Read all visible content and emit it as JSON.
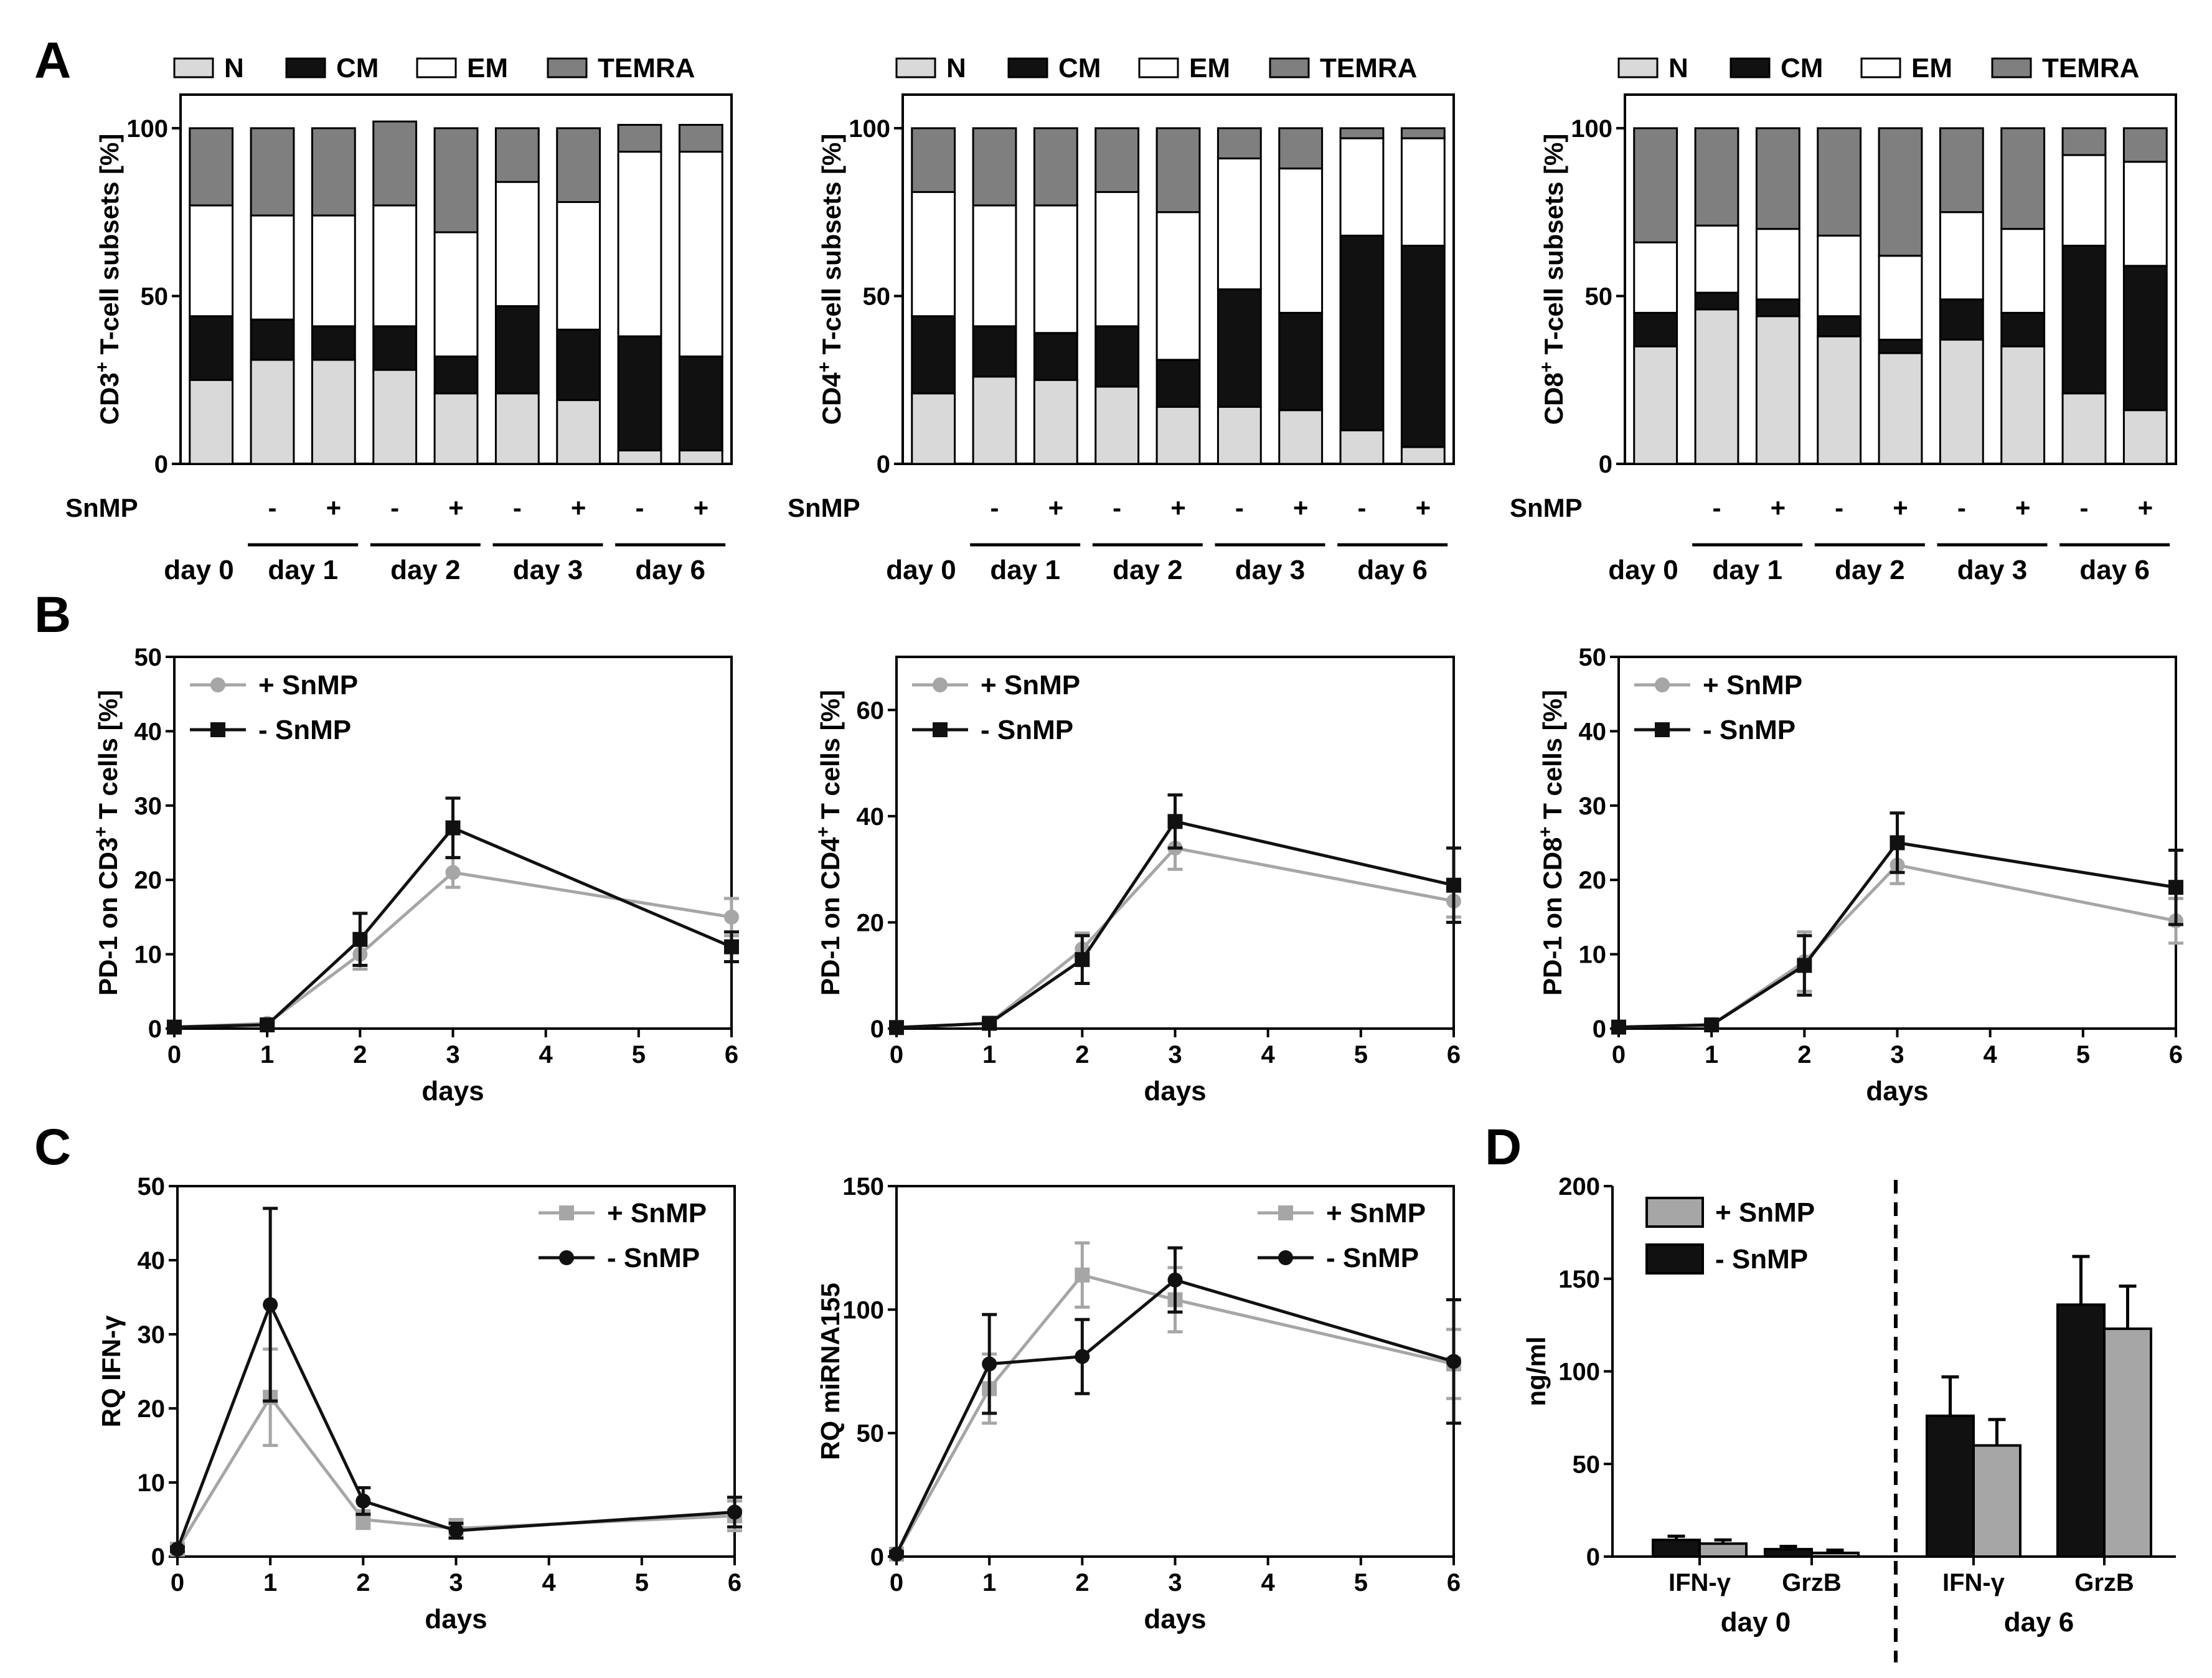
{
  "colors": {
    "N": "#d9d9d9",
    "CM": "#111111",
    "EM": "#ffffff",
    "TEMRA": "#7f7f7f",
    "plus": "#a6a6a6",
    "minus": "#111111",
    "d_plus": "#a6a6a6",
    "d_minus": "#111111"
  },
  "panel_labels": {
    "A": "A",
    "B": "B",
    "C": "C",
    "D": "D"
  },
  "chart_data": [
    {
      "id": "A1",
      "type": "bar",
      "stacked": true,
      "ylabel": "CD3",
      "ylabel_sup": "+",
      "ylabel_rest": " T-cell subsets [%]",
      "ylim": [
        0,
        110
      ],
      "yticks": [
        0,
        50,
        100
      ],
      "legend": [
        "N",
        "CM",
        "EM",
        "TEMRA"
      ],
      "snmp_label": "SnMP",
      "snmp": [
        "",
        "-",
        "+",
        "-",
        "+",
        "-",
        "+",
        "-",
        "+"
      ],
      "day_groups": [
        "day 0",
        "day 1",
        "day 2",
        "day 3",
        "day 6"
      ],
      "categories": [
        "day 0",
        "day 1 -",
        "day 1 +",
        "day 2 -",
        "day 2 +",
        "day 3 -",
        "day 3 +",
        "day 6 -",
        "day 6 +"
      ],
      "series": [
        {
          "name": "N",
          "values": [
            25,
            31,
            31,
            28,
            21,
            21,
            19,
            4,
            4
          ]
        },
        {
          "name": "CM",
          "values": [
            19,
            12,
            10,
            13,
            11,
            26,
            21,
            34,
            28
          ]
        },
        {
          "name": "EM",
          "values": [
            33,
            31,
            33,
            36,
            37,
            37,
            38,
            55,
            61
          ]
        },
        {
          "name": "TEMRA",
          "values": [
            23,
            26,
            26,
            25,
            31,
            16,
            22,
            8,
            8
          ]
        }
      ]
    },
    {
      "id": "A2",
      "type": "bar",
      "stacked": true,
      "ylabel": "CD4",
      "ylabel_sup": "+",
      "ylabel_rest": " T-cell subsets [%]",
      "ylim": [
        0,
        110
      ],
      "yticks": [
        0,
        50,
        100
      ],
      "legend": [
        "N",
        "CM",
        "EM",
        "TEMRA"
      ],
      "snmp_label": "SnMP",
      "snmp": [
        "",
        "-",
        "+",
        "-",
        "+",
        "-",
        "+",
        "-",
        "+"
      ],
      "day_groups": [
        "day 0",
        "day 1",
        "day 2",
        "day 3",
        "day 6"
      ],
      "categories": [
        "day 0",
        "day 1 -",
        "day 1 +",
        "day 2 -",
        "day 2 +",
        "day 3 -",
        "day 3 +",
        "day 6 -",
        "day 6 +"
      ],
      "series": [
        {
          "name": "N",
          "values": [
            21,
            26,
            25,
            23,
            17,
            17,
            16,
            10,
            5
          ]
        },
        {
          "name": "CM",
          "values": [
            23,
            15,
            14,
            18,
            14,
            35,
            29,
            58,
            60
          ]
        },
        {
          "name": "EM",
          "values": [
            37,
            36,
            38,
            40,
            44,
            39,
            43,
            29,
            32
          ]
        },
        {
          "name": "TEMRA",
          "values": [
            19,
            23,
            23,
            19,
            25,
            9,
            12,
            3,
            3
          ]
        }
      ]
    },
    {
      "id": "A3",
      "type": "bar",
      "stacked": true,
      "ylabel": "CD8",
      "ylabel_sup": "+",
      "ylabel_rest": " T-cell subsets [%]",
      "ylim": [
        0,
        110
      ],
      "yticks": [
        0,
        50,
        100
      ],
      "legend": [
        "N",
        "CM",
        "EM",
        "TEMRA"
      ],
      "snmp_label": "SnMP",
      "snmp": [
        "",
        "-",
        "+",
        "-",
        "+",
        "-",
        "+",
        "-",
        "+"
      ],
      "day_groups": [
        "day 0",
        "day 1",
        "day 2",
        "day 3",
        "day 6"
      ],
      "categories": [
        "day 0",
        "day 1 -",
        "day 1 +",
        "day 2 -",
        "day 2 +",
        "day 3 -",
        "day 3 +",
        "day 6 -",
        "day 6 +"
      ],
      "series": [
        {
          "name": "N",
          "values": [
            35,
            46,
            44,
            38,
            33,
            37,
            35,
            21,
            16
          ]
        },
        {
          "name": "CM",
          "values": [
            10,
            5,
            5,
            6,
            4,
            12,
            10,
            44,
            43
          ]
        },
        {
          "name": "EM",
          "values": [
            21,
            20,
            21,
            24,
            25,
            26,
            25,
            27,
            31
          ]
        },
        {
          "name": "TEMRA",
          "values": [
            34,
            29,
            30,
            32,
            38,
            25,
            30,
            8,
            10
          ]
        }
      ]
    },
    {
      "id": "B1",
      "type": "line",
      "ylabel": "PD-1 on CD3",
      "ylabel_sup": "+",
      "ylabel_rest": " T cells [%]",
      "xlabel": "days",
      "ylim": [
        0,
        50
      ],
      "yticks": [
        0,
        10,
        20,
        30,
        40,
        50
      ],
      "xlim": [
        0,
        6
      ],
      "xticks": [
        0,
        1,
        2,
        3,
        4,
        5,
        6
      ],
      "x": [
        0,
        1,
        2,
        3,
        6
      ],
      "series": [
        {
          "name": "+ SnMP",
          "marker": "circle",
          "values": [
            0.2,
            0.7,
            10,
            21,
            15
          ],
          "err": [
            0.3,
            0.3,
            2,
            2,
            2.5
          ]
        },
        {
          "name": "- SnMP",
          "marker": "square",
          "values": [
            0.2,
            0.5,
            12,
            27,
            11
          ],
          "err": [
            0.3,
            0.3,
            3.5,
            4,
            2
          ]
        }
      ]
    },
    {
      "id": "B2",
      "type": "line",
      "ylabel": "PD-1 on CD4",
      "ylabel_sup": "+",
      "ylabel_rest": " T cells [%]",
      "xlabel": "days",
      "ylim": [
        0,
        70
      ],
      "yticks": [
        0,
        20,
        40,
        60
      ],
      "xlim": [
        0,
        6
      ],
      "xticks": [
        0,
        1,
        2,
        3,
        4,
        5,
        6
      ],
      "x": [
        0,
        1,
        2,
        3,
        6
      ],
      "series": [
        {
          "name": "+ SnMP",
          "marker": "circle",
          "values": [
            0.2,
            1,
            15,
            34,
            24
          ],
          "err": [
            0.3,
            0.5,
            3,
            4,
            3
          ]
        },
        {
          "name": "- SnMP",
          "marker": "square",
          "values": [
            0.2,
            1,
            13,
            39,
            27
          ],
          "err": [
            0.3,
            0.5,
            4.5,
            5,
            7
          ]
        }
      ]
    },
    {
      "id": "B3",
      "type": "line",
      "ylabel": "PD-1 on CD8",
      "ylabel_sup": "+",
      "ylabel_rest": " T cells [%]",
      "xlabel": "days",
      "ylim": [
        0,
        50
      ],
      "yticks": [
        0,
        10,
        20,
        30,
        40,
        50
      ],
      "xlim": [
        0,
        6
      ],
      "xticks": [
        0,
        1,
        2,
        3,
        4,
        5,
        6
      ],
      "x": [
        0,
        1,
        2,
        3,
        6
      ],
      "series": [
        {
          "name": "+ SnMP",
          "marker": "circle",
          "values": [
            0.2,
            0.5,
            9,
            22,
            14.5
          ],
          "err": [
            0.3,
            0.3,
            4,
            2.5,
            3
          ]
        },
        {
          "name": "- SnMP",
          "marker": "square",
          "values": [
            0.2,
            0.5,
            8.5,
            25,
            19
          ],
          "err": [
            0.3,
            0.3,
            4,
            4,
            5
          ]
        }
      ]
    },
    {
      "id": "C1",
      "type": "line",
      "ylabel": "RQ IFN-γ",
      "xlabel": "days",
      "ylim": [
        0,
        50
      ],
      "yticks": [
        0,
        10,
        20,
        30,
        40,
        50
      ],
      "xlim": [
        0,
        6
      ],
      "xticks": [
        0,
        1,
        2,
        3,
        4,
        5,
        6
      ],
      "x": [
        0,
        1,
        2,
        3,
        6
      ],
      "series": [
        {
          "name": "+ SnMP",
          "marker": "square",
          "values": [
            1,
            21.5,
            5,
            3.8,
            5.5
          ],
          "err": [
            0.3,
            6.5,
            1.2,
            1.2,
            2
          ]
        },
        {
          "name": "- SnMP",
          "marker": "circle",
          "values": [
            1,
            34,
            7.5,
            3.5,
            6
          ],
          "err": [
            0.3,
            13,
            1.8,
            1,
            2
          ]
        }
      ]
    },
    {
      "id": "C2",
      "type": "line",
      "ylabel": "RQ miRNA155",
      "xlabel": "days",
      "ylim": [
        0,
        150
      ],
      "yticks": [
        0,
        50,
        100,
        150
      ],
      "xlim": [
        0,
        6
      ],
      "xticks": [
        0,
        1,
        2,
        3,
        4,
        5,
        6
      ],
      "x": [
        0,
        1,
        2,
        3,
        6
      ],
      "series": [
        {
          "name": "+ SnMP",
          "marker": "square",
          "values": [
            1,
            68,
            114,
            104,
            78
          ],
          "err": [
            1,
            14,
            13,
            13,
            14
          ]
        },
        {
          "name": "- SnMP",
          "marker": "circle",
          "values": [
            1,
            78,
            81,
            112,
            79
          ],
          "err": [
            1,
            20,
            15,
            13,
            25
          ]
        }
      ]
    },
    {
      "id": "D",
      "type": "bar",
      "ylabel": "ng/ml",
      "ylim": [
        0,
        200
      ],
      "yticks": [
        0,
        50,
        100,
        150,
        200
      ],
      "categories": [
        "IFN-γ",
        "GrzB",
        "IFN-γ",
        "GrzB"
      ],
      "group_labels": [
        "day 0",
        "day 6"
      ],
      "series": [
        {
          "name": "+ SnMP",
          "values": [
            7,
            2,
            60,
            123
          ],
          "err": [
            2,
            1.5,
            14,
            23
          ]
        },
        {
          "name": "- SnMP",
          "values": [
            9,
            4,
            76,
            136
          ],
          "err": [
            2,
            1.5,
            21,
            26
          ]
        }
      ]
    }
  ]
}
